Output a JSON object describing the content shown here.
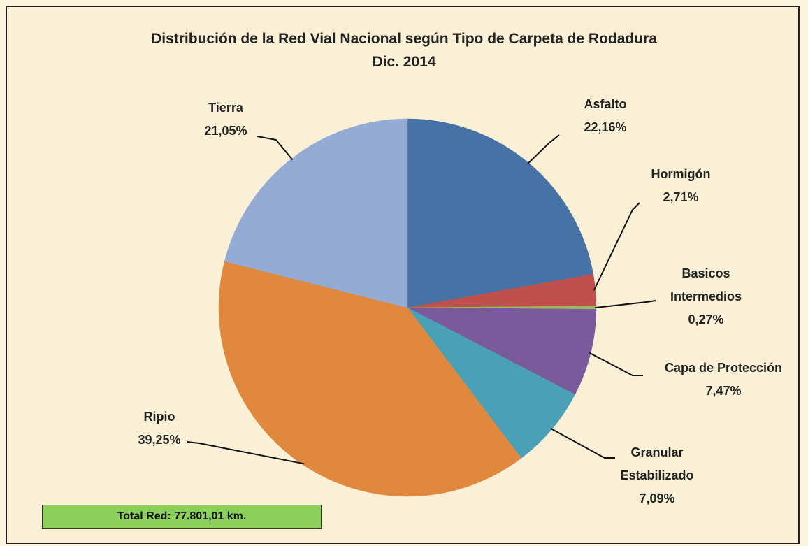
{
  "chart_data": {
    "type": "pie",
    "title": "Distribución de la Red Vial Nacional según Tipo de Carpeta de Rodadura",
    "subtitle": "Dic. 2014",
    "categories": [
      "Asfalto",
      "Hormigón",
      "Basicos Intermedios",
      "Capa de Protección",
      "Granular Estabilizado",
      "Ripio",
      "Tierra"
    ],
    "values": [
      22.16,
      2.71,
      0.27,
      7.47,
      7.09,
      39.25,
      21.05
    ],
    "value_labels": [
      "22,16%",
      "2,71%",
      "0,27%",
      "7,47%",
      "7,09%",
      "39,25%",
      "21,05%"
    ],
    "colors": [
      "#4672a6",
      "#c0504d",
      "#9bbb59",
      "#7a5a9c",
      "#4aa0b6",
      "#e0893e",
      "#94abd5"
    ],
    "annotation": "Total Red: 77.801,01 km."
  }
}
